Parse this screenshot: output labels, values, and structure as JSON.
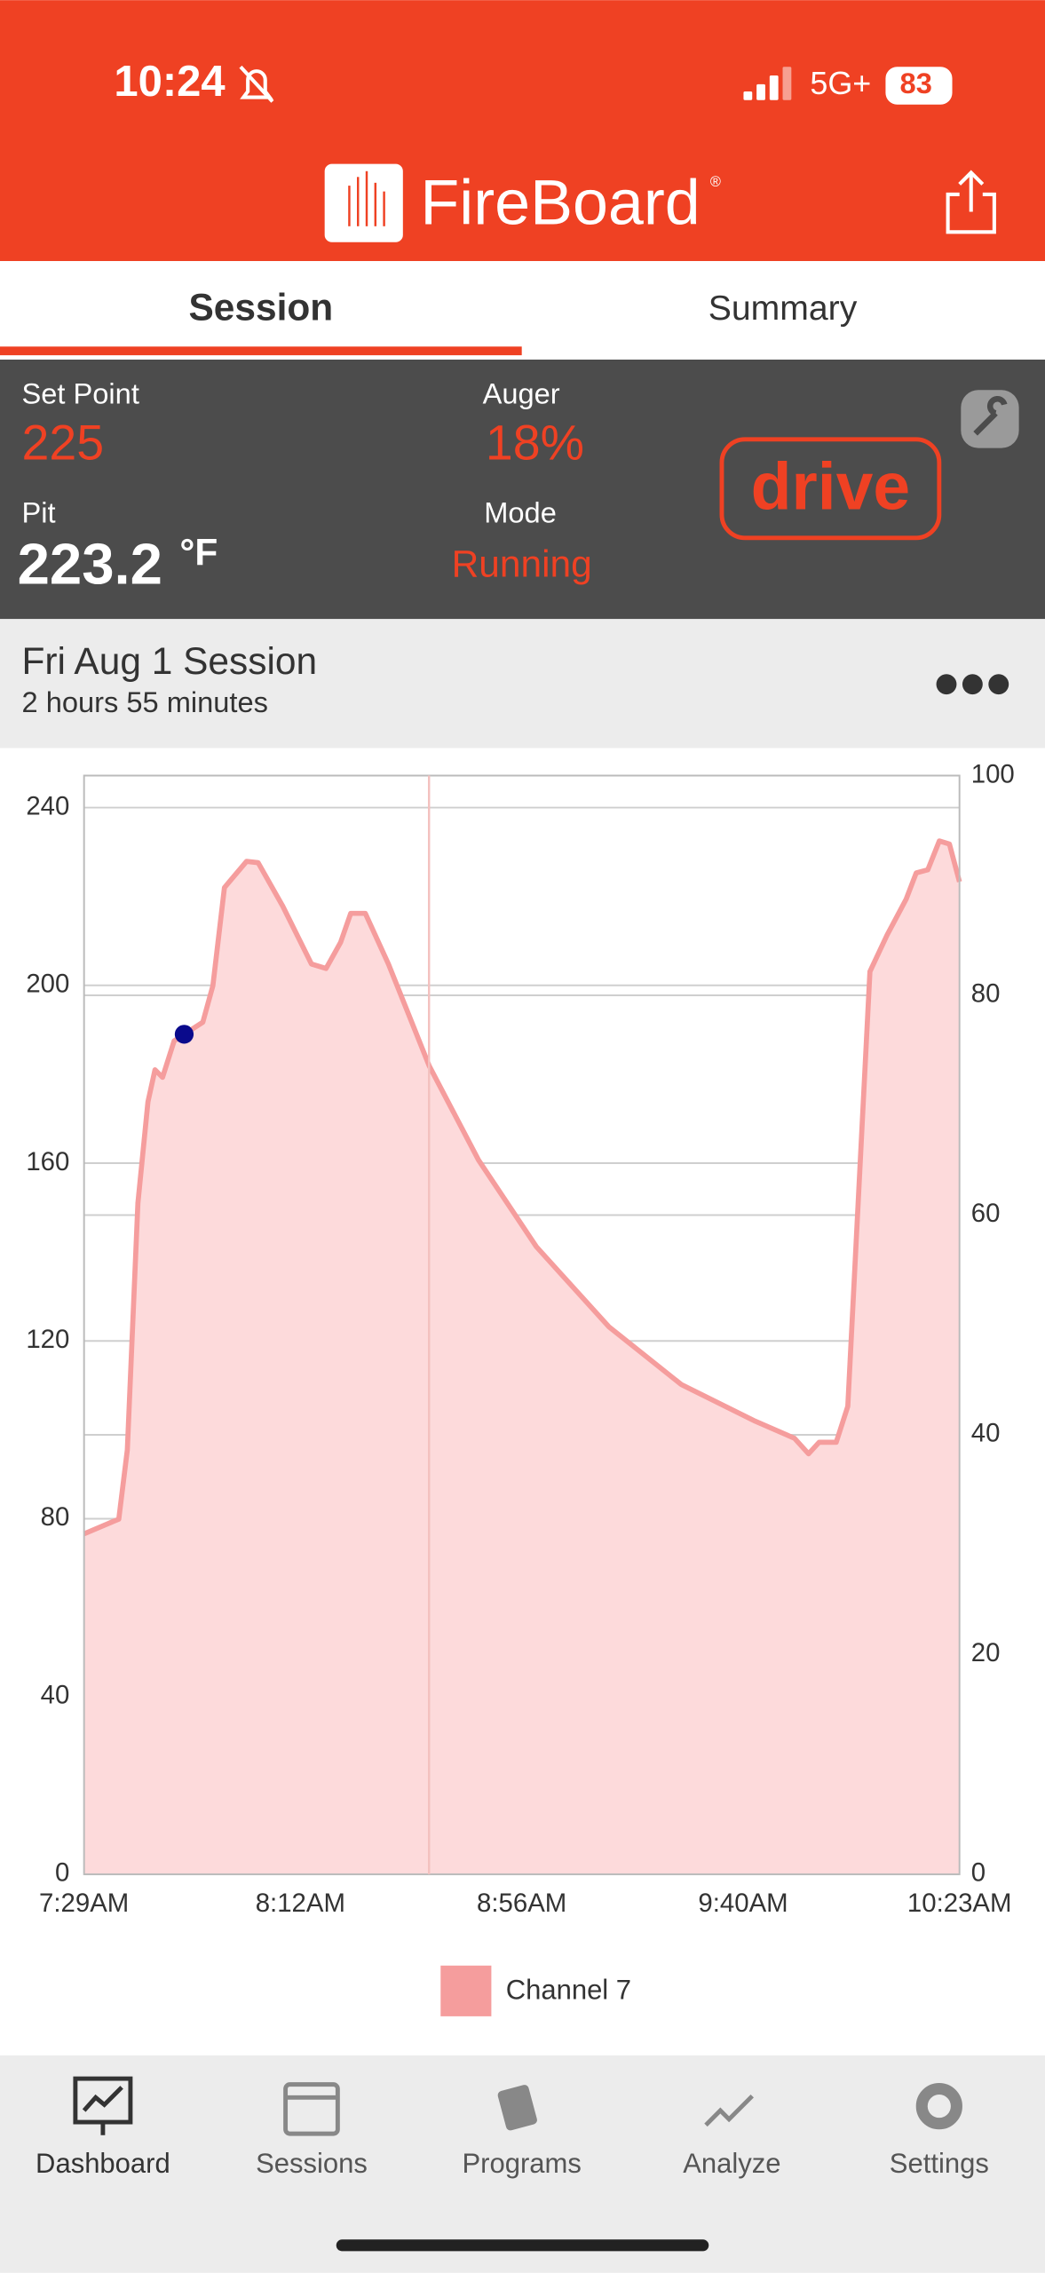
{
  "status_bar": {
    "time": "10:24",
    "network": "5G+",
    "battery": "83"
  },
  "header": {
    "title": "FireBoard",
    "title_mark": "®"
  },
  "tabs": [
    "Session",
    "Summary"
  ],
  "controller": {
    "set_point_label": "Set Point",
    "set_point": "225",
    "auger_label": "Auger",
    "auger": "18%",
    "pit_label": "Pit",
    "pit": "223.2",
    "pit_unit": "°F",
    "mode_label": "Mode",
    "mode": "Running",
    "brand": "drive"
  },
  "session": {
    "title": "Fri Aug 1 Session",
    "duration": "2 hours 55 minutes"
  },
  "chart_data": {
    "type": "area",
    "x": [
      449,
      455.9,
      457.6,
      459.7,
      461.7,
      463.1,
      464.6,
      466.9,
      468.9,
      472.6,
      474.6,
      476.9,
      481.3,
      483.6,
      488.5,
      494.2,
      497.1,
      500,
      502,
      504.9,
      509.5,
      517.6,
      527.4,
      538.9,
      553.3,
      567.7,
      582.1,
      590.2,
      593,
      595.1,
      598.5,
      600.8,
      605.2,
      608.6,
      612.4,
      614.4,
      616.7,
      619,
      621,
      623
    ],
    "series": [
      {
        "name": "Channel 7",
        "color": "#f59d9d",
        "fill": "#fddadb",
        "values": [
          76.6,
          79.9,
          95.5,
          151,
          173.8,
          181,
          179.3,
          187.5,
          189,
          191.7,
          199.9,
          222,
          227.9,
          227.6,
          217.8,
          204.8,
          203.8,
          209.7,
          216.2,
          216.2,
          204.8,
          181.9,
          160.7,
          141.2,
          123.2,
          110.2,
          102.1,
          98.1,
          94.6,
          97.2,
          97.2,
          105.3,
          203.1,
          211.3,
          219.4,
          225.3,
          226,
          232.5,
          231.8,
          223.3
        ]
      }
    ],
    "highlight": {
      "x": 468.9,
      "y": 189,
      "color": "#0a0a8c"
    },
    "xlim": [
      449,
      623
    ],
    "xticks": [
      {
        "value": 449,
        "label": "7:29AM"
      },
      {
        "value": 492,
        "label": "8:12AM"
      },
      {
        "value": 536,
        "label": "8:56AM"
      },
      {
        "value": 580,
        "label": "9:40AM"
      },
      {
        "value": 623,
        "label": "10:23AM"
      }
    ],
    "ylim": [
      0,
      247.2
    ],
    "yticks": [
      0,
      40,
      80,
      120,
      160,
      200,
      240
    ],
    "y2lim": [
      0,
      100
    ],
    "y2ticks": [
      0,
      20,
      40,
      60,
      80,
      100
    ],
    "grid": true,
    "legend": "bottom"
  },
  "nav": [
    "Dashboard",
    "Sessions",
    "Programs",
    "Analyze",
    "Settings"
  ]
}
